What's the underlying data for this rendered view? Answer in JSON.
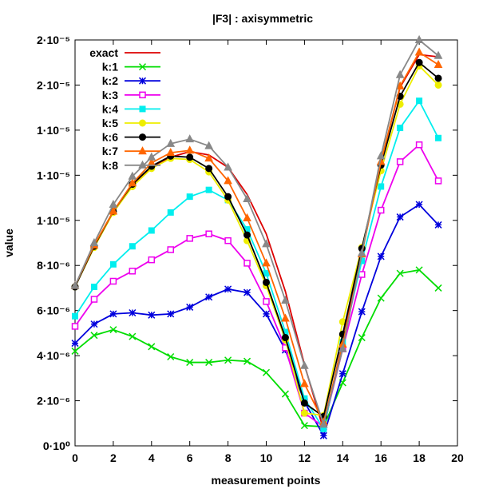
{
  "chart_data": {
    "type": "line",
    "title": "|F3| : axisymmetric",
    "xlabel": "measurement points",
    "ylabel": "value",
    "xlim": [
      0,
      20
    ],
    "ylim": [
      0,
      1.8e-05
    ],
    "x_ticks": [
      0,
      2,
      4,
      6,
      8,
      10,
      12,
      14,
      16,
      18,
      20
    ],
    "x_tick_labels": [
      "0",
      "2",
      "4",
      "6",
      "8",
      "10",
      "12",
      "14",
      "16",
      "18",
      "20"
    ],
    "y_ticks": [
      0,
      2e-06,
      4e-06,
      6e-06,
      8e-06,
      1e-05,
      1.2e-05,
      1.4e-05,
      1.6e-05,
      1.8e-05
    ],
    "y_tick_labels": [
      "0·10⁰",
      "2·10⁻⁶",
      "4·10⁻⁶",
      "6·10⁻⁶",
      "8·10⁻⁶",
      "1·10⁻⁵",
      "1·10⁻⁵",
      "1·10⁻⁵",
      "2·10⁻⁵",
      "2·10⁻⁵"
    ],
    "grid": false,
    "legend_position": "top-left",
    "x": [
      0,
      1,
      2,
      3,
      4,
      5,
      6,
      7,
      8,
      9,
      10,
      11,
      12,
      13,
      14,
      15,
      16,
      17,
      18,
      19
    ],
    "series": [
      {
        "name": "exact",
        "color": "#dd0000",
        "marker": "none",
        "values": [
          7.1e-06,
          8.85e-06,
          1.04e-05,
          1.155e-05,
          1.235e-05,
          1.28e-05,
          1.305e-05,
          1.29e-05,
          1.235e-05,
          1.115e-05,
          9.4e-06,
          6.85e-06,
          3.6e-06,
          7e-07,
          4.7e-06,
          8.55e-06,
          1.26e-05,
          1.59e-05,
          1.735e-05,
          1.725e-05
        ]
      },
      {
        "name": "k:1",
        "color": "#00dd00",
        "marker": "x",
        "values": [
          4.2e-06,
          4.9e-06,
          5.15e-06,
          4.85e-06,
          4.4e-06,
          3.95e-06,
          3.7e-06,
          3.7e-06,
          3.8e-06,
          3.75e-06,
          3.25e-06,
          2.3e-06,
          9e-07,
          8.5e-07,
          2.8e-06,
          4.8e-06,
          6.55e-06,
          7.65e-06,
          7.8e-06,
          7e-06
        ]
      },
      {
        "name": "k:2",
        "color": "#0000dd",
        "marker": "star",
        "values": [
          4.55e-06,
          5.4e-06,
          5.85e-06,
          5.9e-06,
          5.8e-06,
          5.85e-06,
          6.15e-06,
          6.6e-06,
          6.95e-06,
          6.8e-06,
          5.85e-06,
          4.25e-06,
          1.95e-06,
          4.5e-07,
          3.2e-06,
          5.95e-06,
          8.4e-06,
          1.015e-05,
          1.07e-05,
          9.8e-06
        ]
      },
      {
        "name": "k:3",
        "color": "#ee00ee",
        "marker": "square-open",
        "values": [
          5.3e-06,
          6.5e-06,
          7.3e-06,
          7.75e-06,
          8.25e-06,
          8.7e-06,
          9.2e-06,
          9.4e-06,
          9.1e-06,
          8.1e-06,
          6.4e-06,
          4.35e-06,
          1.45e-06,
          8.5e-07,
          4.3e-06,
          7.6e-06,
          1.045e-05,
          1.26e-05,
          1.335e-05,
          1.175e-05
        ]
      },
      {
        "name": "k:4",
        "color": "#00eeee",
        "marker": "square",
        "values": [
          5.75e-06,
          7.05e-06,
          8.05e-06,
          8.85e-06,
          9.55e-06,
          1.035e-05,
          1.105e-05,
          1.135e-05,
          1.09e-05,
          9.6e-06,
          7.65e-06,
          5.05e-06,
          2.1e-06,
          7.5e-07,
          4.6e-06,
          8.2e-06,
          1.15e-05,
          1.41e-05,
          1.53e-05,
          1.365e-05
        ]
      },
      {
        "name": "k:5",
        "color": "#eeee00",
        "marker": "circle",
        "values": [
          7.05e-06,
          8.8e-06,
          1.035e-05,
          1.15e-05,
          1.23e-05,
          1.275e-05,
          1.27e-05,
          1.215e-05,
          1.09e-05,
          9.1e-06,
          7.1e-06,
          4.7e-06,
          1.45e-06,
          1.35e-06,
          5.5e-06,
          8.8e-06,
          1.22e-05,
          1.515e-05,
          1.685e-05,
          1.6e-05
        ]
      },
      {
        "name": "k:6",
        "color": "#000000",
        "marker": "circle",
        "values": [
          7.05e-06,
          8.85e-06,
          1.04e-05,
          1.16e-05,
          1.24e-05,
          1.285e-05,
          1.28e-05,
          1.23e-05,
          1.105e-05,
          9.35e-06,
          7.25e-06,
          4.8e-06,
          1.9e-06,
          1.3e-06,
          4.95e-06,
          8.75e-06,
          1.245e-05,
          1.55e-05,
          1.7e-05,
          1.63e-05
        ]
      },
      {
        "name": "k:7",
        "color": "#ff6600",
        "marker": "triangle",
        "values": [
          7.1e-06,
          8.9e-06,
          1.04e-05,
          1.165e-05,
          1.255e-05,
          1.3e-05,
          1.31e-05,
          1.275e-05,
          1.175e-05,
          1.01e-05,
          8.1e-06,
          5.65e-06,
          2.75e-06,
          1.05e-06,
          4.5e-06,
          8.5e-06,
          1.26e-05,
          1.595e-05,
          1.745e-05,
          1.69e-05
        ]
      },
      {
        "name": "k:8",
        "color": "#888888",
        "marker": "triangle",
        "values": [
          7.1e-06,
          9e-06,
          1.07e-05,
          1.195e-05,
          1.28e-05,
          1.34e-05,
          1.36e-05,
          1.33e-05,
          1.235e-05,
          1.095e-05,
          8.95e-06,
          6.45e-06,
          3.55e-06,
          9.5e-07,
          4.3e-06,
          8.55e-06,
          1.285e-05,
          1.645e-05,
          1.8e-05,
          1.73e-05
        ]
      }
    ]
  }
}
